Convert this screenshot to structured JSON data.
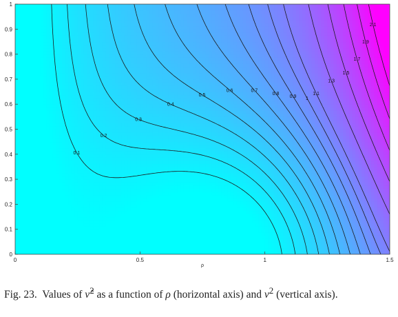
{
  "chart_data": {
    "type": "contour",
    "xlabel": "ρ",
    "ylabel": "",
    "xlim": [
      0,
      1.5
    ],
    "ylim": [
      0,
      1
    ],
    "x_ticks": [
      "0",
      "0.5",
      "1",
      "1.5"
    ],
    "y_ticks": [
      "0",
      "0.1",
      "0.2",
      "0.3",
      "0.4",
      "0.5",
      "0.6",
      "0.7",
      "0.8",
      "0.9",
      "1"
    ],
    "colormap": [
      "#00ffff",
      "#ff00ff"
    ],
    "contour_levels": [
      {
        "level": 0.1,
        "label": "0.1"
      },
      {
        "level": 0.2,
        "label": "0.2"
      },
      {
        "level": 0.3,
        "label": "0.3"
      },
      {
        "level": 0.4,
        "label": "0.4"
      },
      {
        "level": 0.5,
        "label": "0.5"
      },
      {
        "level": 0.6,
        "label": "0.6"
      },
      {
        "level": 0.7,
        "label": "0.7"
      },
      {
        "level": 0.8,
        "label": "0.8"
      },
      {
        "level": 0.9,
        "label": "0.9"
      },
      {
        "level": 1.0,
        "label": "1"
      },
      {
        "level": 1.1,
        "label": "1.1"
      },
      {
        "level": 1.3,
        "label": "1.3"
      },
      {
        "level": 1.5,
        "label": "1.5"
      },
      {
        "level": 1.7,
        "label": "1.7"
      },
      {
        "level": 1.9,
        "label": "1.9"
      },
      {
        "level": 2.1,
        "label": "2.1"
      }
    ],
    "grid": false
  },
  "caption": {
    "prefix": "Fig. 23.",
    "t1": "Values of",
    "sym1": "ν̂",
    "sup1": "2",
    "t2": "as a function of",
    "sym2": "ρ",
    "t3": "(horizontal axis) and",
    "sym3": "ν",
    "sup2": "2",
    "t4": "(vertical axis)."
  }
}
